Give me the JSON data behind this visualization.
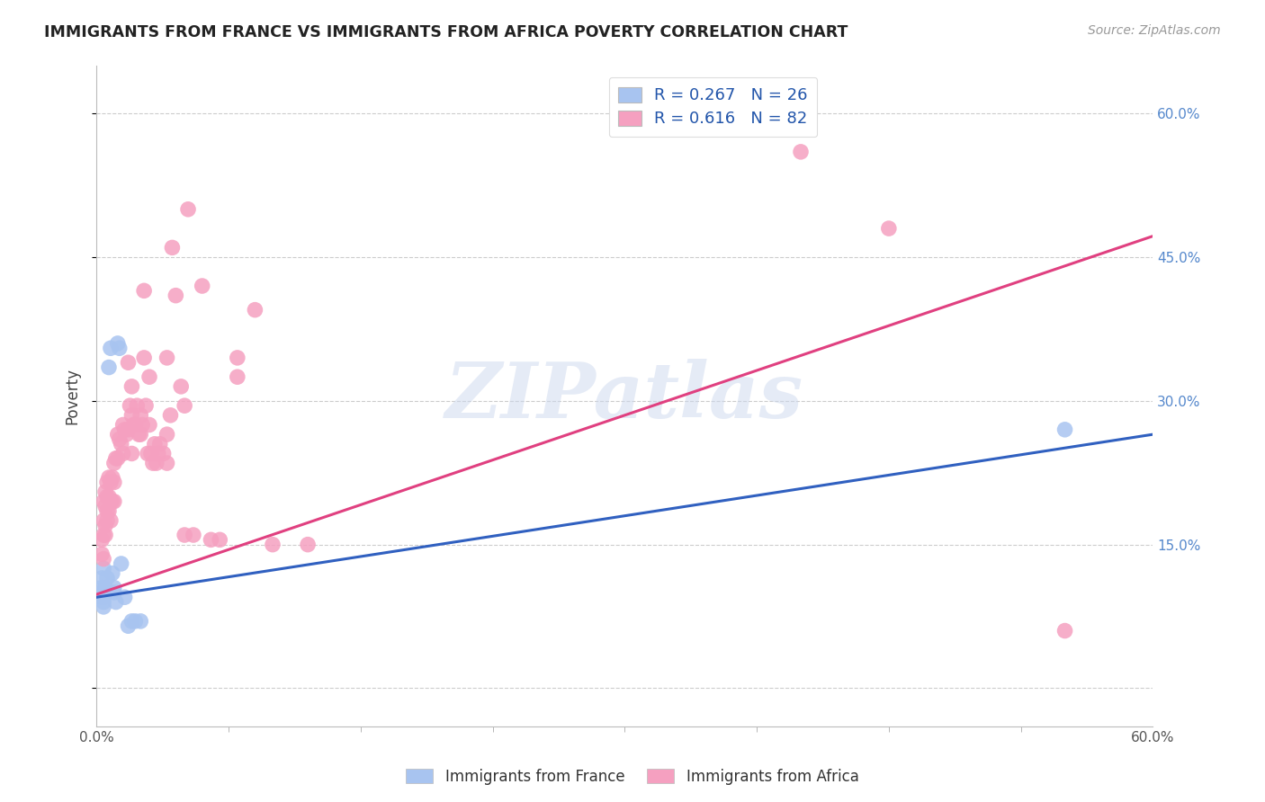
{
  "title": "IMMIGRANTS FROM FRANCE VS IMMIGRANTS FROM AFRICA POVERTY CORRELATION CHART",
  "source": "Source: ZipAtlas.com",
  "ylabel": "Poverty",
  "xlim": [
    0.0,
    0.6
  ],
  "ylim": [
    -0.04,
    0.65
  ],
  "legend_r1": "R = 0.267",
  "legend_n1": "N = 26",
  "legend_r2": "R = 0.616",
  "legend_n2": "N = 82",
  "legend_label1": "Immigrants from France",
  "legend_label2": "Immigrants from Africa",
  "france_color": "#a8c4f0",
  "africa_color": "#f5a0c0",
  "france_line_color": "#3060c0",
  "africa_line_color": "#e04080",
  "watermark": "ZIPatlas",
  "france_line_x": [
    0.0,
    0.6
  ],
  "france_line_y": [
    0.095,
    0.265
  ],
  "africa_line_x": [
    0.0,
    0.6
  ],
  "africa_line_y": [
    0.098,
    0.472
  ],
  "france_points": [
    [
      0.003,
      0.115
    ],
    [
      0.003,
      0.105
    ],
    [
      0.003,
      0.1
    ],
    [
      0.003,
      0.095
    ],
    [
      0.004,
      0.125
    ],
    [
      0.004,
      0.095
    ],
    [
      0.004,
      0.085
    ],
    [
      0.004,
      0.09
    ],
    [
      0.005,
      0.105
    ],
    [
      0.005,
      0.1
    ],
    [
      0.006,
      0.115
    ],
    [
      0.007,
      0.335
    ],
    [
      0.008,
      0.355
    ],
    [
      0.009,
      0.12
    ],
    [
      0.01,
      0.105
    ],
    [
      0.01,
      0.1
    ],
    [
      0.011,
      0.09
    ],
    [
      0.012,
      0.36
    ],
    [
      0.013,
      0.355
    ],
    [
      0.014,
      0.13
    ],
    [
      0.016,
      0.095
    ],
    [
      0.018,
      0.065
    ],
    [
      0.02,
      0.07
    ],
    [
      0.022,
      0.07
    ],
    [
      0.025,
      0.07
    ],
    [
      0.55,
      0.27
    ]
  ],
  "africa_points": [
    [
      0.003,
      0.155
    ],
    [
      0.003,
      0.14
    ],
    [
      0.004,
      0.16
    ],
    [
      0.004,
      0.135
    ],
    [
      0.004,
      0.175
    ],
    [
      0.004,
      0.195
    ],
    [
      0.005,
      0.205
    ],
    [
      0.005,
      0.19
    ],
    [
      0.005,
      0.17
    ],
    [
      0.005,
      0.16
    ],
    [
      0.006,
      0.215
    ],
    [
      0.006,
      0.2
    ],
    [
      0.006,
      0.185
    ],
    [
      0.006,
      0.175
    ],
    [
      0.007,
      0.22
    ],
    [
      0.007,
      0.2
    ],
    [
      0.007,
      0.185
    ],
    [
      0.008,
      0.215
    ],
    [
      0.008,
      0.195
    ],
    [
      0.008,
      0.175
    ],
    [
      0.009,
      0.22
    ],
    [
      0.009,
      0.195
    ],
    [
      0.01,
      0.235
    ],
    [
      0.01,
      0.215
    ],
    [
      0.01,
      0.195
    ],
    [
      0.011,
      0.24
    ],
    [
      0.012,
      0.265
    ],
    [
      0.012,
      0.24
    ],
    [
      0.013,
      0.26
    ],
    [
      0.014,
      0.255
    ],
    [
      0.015,
      0.275
    ],
    [
      0.015,
      0.245
    ],
    [
      0.016,
      0.27
    ],
    [
      0.017,
      0.265
    ],
    [
      0.018,
      0.34
    ],
    [
      0.018,
      0.27
    ],
    [
      0.019,
      0.295
    ],
    [
      0.02,
      0.315
    ],
    [
      0.02,
      0.285
    ],
    [
      0.02,
      0.245
    ],
    [
      0.021,
      0.275
    ],
    [
      0.022,
      0.275
    ],
    [
      0.023,
      0.295
    ],
    [
      0.024,
      0.265
    ],
    [
      0.025,
      0.285
    ],
    [
      0.025,
      0.265
    ],
    [
      0.026,
      0.275
    ],
    [
      0.027,
      0.415
    ],
    [
      0.027,
      0.345
    ],
    [
      0.028,
      0.295
    ],
    [
      0.029,
      0.245
    ],
    [
      0.03,
      0.325
    ],
    [
      0.03,
      0.275
    ],
    [
      0.031,
      0.245
    ],
    [
      0.032,
      0.235
    ],
    [
      0.033,
      0.255
    ],
    [
      0.034,
      0.235
    ],
    [
      0.035,
      0.245
    ],
    [
      0.036,
      0.255
    ],
    [
      0.038,
      0.245
    ],
    [
      0.04,
      0.345
    ],
    [
      0.04,
      0.265
    ],
    [
      0.04,
      0.235
    ],
    [
      0.042,
      0.285
    ],
    [
      0.043,
      0.46
    ],
    [
      0.045,
      0.41
    ],
    [
      0.048,
      0.315
    ],
    [
      0.05,
      0.295
    ],
    [
      0.05,
      0.16
    ],
    [
      0.052,
      0.5
    ],
    [
      0.055,
      0.16
    ],
    [
      0.06,
      0.42
    ],
    [
      0.065,
      0.155
    ],
    [
      0.07,
      0.155
    ],
    [
      0.08,
      0.345
    ],
    [
      0.08,
      0.325
    ],
    [
      0.09,
      0.395
    ],
    [
      0.1,
      0.15
    ],
    [
      0.12,
      0.15
    ],
    [
      0.4,
      0.56
    ],
    [
      0.45,
      0.48
    ],
    [
      0.55,
      0.06
    ]
  ]
}
